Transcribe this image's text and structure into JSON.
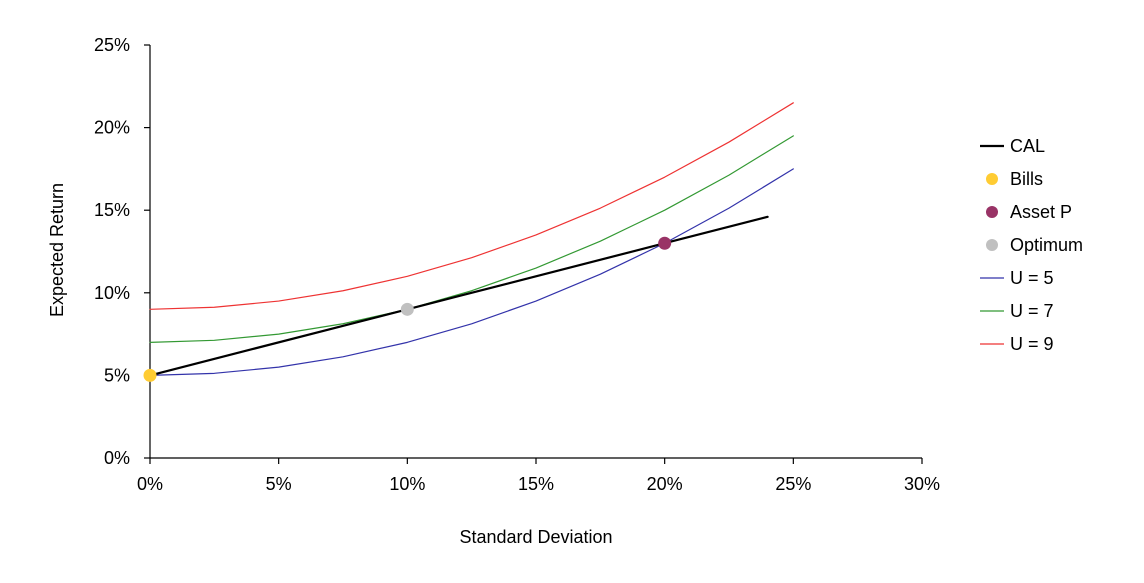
{
  "chart_data": {
    "type": "line",
    "title": "",
    "xlabel": "Standard Deviation",
    "ylabel": "Expected Return",
    "xlim": [
      0,
      30
    ],
    "ylim": [
      0,
      25
    ],
    "xticks": [
      "0%",
      "5%",
      "10%",
      "15%",
      "20%",
      "25%",
      "30%"
    ],
    "yticks": [
      "0%",
      "5%",
      "10%",
      "15%",
      "20%",
      "25%"
    ],
    "grid": false,
    "legend_position": "right",
    "series": [
      {
        "name": "CAL",
        "kind": "line",
        "color": "#000000",
        "x": [
          0,
          4,
          8,
          12,
          16,
          20,
          24
        ],
        "y": [
          5,
          6.6,
          8.2,
          9.8,
          11.4,
          13.0,
          14.6
        ]
      },
      {
        "name": "Bills",
        "kind": "point",
        "color": "#FFCC33",
        "x": [
          0
        ],
        "y": [
          5
        ]
      },
      {
        "name": "Asset P",
        "kind": "point",
        "color": "#993366",
        "x": [
          20
        ],
        "y": [
          13
        ]
      },
      {
        "name": "Optimum",
        "kind": "point",
        "color": "#C0C0C0",
        "x": [
          10
        ],
        "y": [
          9
        ]
      },
      {
        "name": "U = 5",
        "kind": "line",
        "color": "#3333AA",
        "x": [
          0,
          2.5,
          5,
          7.5,
          10,
          12.5,
          15,
          17.5,
          20,
          22.5,
          25
        ],
        "y": [
          5,
          5.125,
          5.5,
          6.125,
          7,
          8.125,
          9.5,
          11.125,
          13,
          15.125,
          17.5
        ]
      },
      {
        "name": "U = 7",
        "kind": "line",
        "color": "#339933",
        "x": [
          0,
          2.5,
          5,
          7.5,
          10,
          12.5,
          15,
          17.5,
          20,
          22.5,
          25
        ],
        "y": [
          7,
          7.125,
          7.5,
          8.125,
          9,
          10.125,
          11.5,
          13.125,
          15,
          17.125,
          19.5
        ]
      },
      {
        "name": "U = 9",
        "kind": "line",
        "color": "#EE3333",
        "x": [
          0,
          2.5,
          5,
          7.5,
          10,
          12.5,
          15,
          17.5,
          20,
          22.5,
          25
        ],
        "y": [
          9,
          9.125,
          9.5,
          10.125,
          11,
          12.125,
          13.5,
          15.125,
          17,
          19.125,
          21.5
        ]
      }
    ]
  }
}
